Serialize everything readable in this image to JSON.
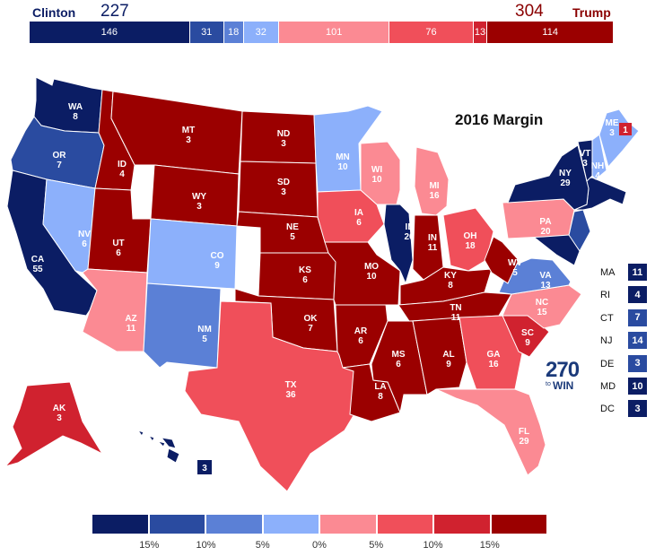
{
  "header": {
    "clinton_name": "Clinton",
    "clinton_total": "227",
    "trump_total": "304",
    "trump_name": "Trump"
  },
  "ev_bar": [
    {
      "value": "146",
      "color": "#0b1d64"
    },
    {
      "value": "31",
      "color": "#2a4ba0"
    },
    {
      "value": "18",
      "color": "#5b80d6"
    },
    {
      "value": "32",
      "color": "#8cb0fb"
    },
    {
      "value": "101",
      "color": "#fb8a93"
    },
    {
      "value": "76",
      "color": "#f04f5a"
    },
    {
      "value": "13",
      "color": "#d0222f"
    },
    {
      "value": "114",
      "color": "#9b0000"
    }
  ],
  "map_title": "2016 Margin",
  "colors": {
    "safe_d": "#0b1d64",
    "likely_d": "#2a4ba0",
    "lean_d": "#5b80d6",
    "tilt_d": "#8cb0fb",
    "tilt_r": "#fb8a93",
    "lean_r": "#f04f5a",
    "likely_r": "#d0222f",
    "safe_r": "#9b0000"
  },
  "states": [
    {
      "abbr": "WA",
      "ev": "8",
      "cat": "safe_d"
    },
    {
      "abbr": "OR",
      "ev": "7",
      "cat": "likely_d"
    },
    {
      "abbr": "CA",
      "ev": "55",
      "cat": "safe_d"
    },
    {
      "abbr": "NV",
      "ev": "6",
      "cat": "tilt_d"
    },
    {
      "abbr": "ID",
      "ev": "4",
      "cat": "safe_r"
    },
    {
      "abbr": "MT",
      "ev": "3",
      "cat": "safe_r"
    },
    {
      "abbr": "WY",
      "ev": "3",
      "cat": "safe_r"
    },
    {
      "abbr": "UT",
      "ev": "6",
      "cat": "safe_r"
    },
    {
      "abbr": "AZ",
      "ev": "11",
      "cat": "tilt_r"
    },
    {
      "abbr": "CO",
      "ev": "9",
      "cat": "tilt_d"
    },
    {
      "abbr": "NM",
      "ev": "5",
      "cat": "lean_d"
    },
    {
      "abbr": "ND",
      "ev": "3",
      "cat": "safe_r"
    },
    {
      "abbr": "SD",
      "ev": "3",
      "cat": "safe_r"
    },
    {
      "abbr": "NE",
      "ev": "5",
      "cat": "safe_r"
    },
    {
      "abbr": "KS",
      "ev": "6",
      "cat": "safe_r"
    },
    {
      "abbr": "OK",
      "ev": "7",
      "cat": "safe_r"
    },
    {
      "abbr": "TX",
      "ev": "36",
      "cat": "lean_r"
    },
    {
      "abbr": "MN",
      "ev": "10",
      "cat": "tilt_d"
    },
    {
      "abbr": "IA",
      "ev": "6",
      "cat": "lean_r"
    },
    {
      "abbr": "MO",
      "ev": "10",
      "cat": "safe_r"
    },
    {
      "abbr": "AR",
      "ev": "6",
      "cat": "safe_r"
    },
    {
      "abbr": "LA",
      "ev": "8",
      "cat": "safe_r"
    },
    {
      "abbr": "WI",
      "ev": "10",
      "cat": "tilt_r"
    },
    {
      "abbr": "IL",
      "ev": "20",
      "cat": "safe_d"
    },
    {
      "abbr": "MI",
      "ev": "16",
      "cat": "tilt_r"
    },
    {
      "abbr": "IN",
      "ev": "11",
      "cat": "safe_r"
    },
    {
      "abbr": "OH",
      "ev": "18",
      "cat": "lean_r"
    },
    {
      "abbr": "KY",
      "ev": "8",
      "cat": "safe_r"
    },
    {
      "abbr": "TN",
      "ev": "11",
      "cat": "safe_r"
    },
    {
      "abbr": "MS",
      "ev": "6",
      "cat": "safe_r"
    },
    {
      "abbr": "AL",
      "ev": "9",
      "cat": "safe_r"
    },
    {
      "abbr": "GA",
      "ev": "16",
      "cat": "lean_r"
    },
    {
      "abbr": "FL",
      "ev": "29",
      "cat": "tilt_r"
    },
    {
      "abbr": "SC",
      "ev": "9",
      "cat": "likely_r"
    },
    {
      "abbr": "NC",
      "ev": "15",
      "cat": "tilt_r"
    },
    {
      "abbr": "VA",
      "ev": "13",
      "cat": "lean_d"
    },
    {
      "abbr": "WV",
      "ev": "5",
      "cat": "safe_r"
    },
    {
      "abbr": "PA",
      "ev": "20",
      "cat": "tilt_r"
    },
    {
      "abbr": "NY",
      "ev": "29",
      "cat": "safe_d"
    },
    {
      "abbr": "VT",
      "ev": "3",
      "cat": "safe_d"
    },
    {
      "abbr": "NH",
      "ev": "4",
      "cat": "tilt_d"
    },
    {
      "abbr": "ME",
      "ev": "3",
      "cat": "tilt_d"
    },
    {
      "abbr": "ME2",
      "ev": "1",
      "cat": "likely_r"
    },
    {
      "abbr": "AK",
      "ev": "3",
      "cat": "likely_r"
    },
    {
      "abbr": "HI",
      "ev": "3",
      "cat": "safe_d"
    }
  ],
  "small_states": [
    {
      "abbr": "MA",
      "ev": "11",
      "cat": "safe_d"
    },
    {
      "abbr": "RI",
      "ev": "4",
      "cat": "safe_d"
    },
    {
      "abbr": "CT",
      "ev": "7",
      "cat": "likely_d"
    },
    {
      "abbr": "NJ",
      "ev": "14",
      "cat": "likely_d"
    },
    {
      "abbr": "DE",
      "ev": "3",
      "cat": "likely_d"
    },
    {
      "abbr": "MD",
      "ev": "10",
      "cat": "safe_d"
    },
    {
      "abbr": "DC",
      "ev": "3",
      "cat": "safe_d"
    }
  ],
  "logo": {
    "number": "270",
    "to": "to",
    "win": "WIN"
  },
  "legend": {
    "colors": [
      "#0b1d64",
      "#2a4ba0",
      "#5b80d6",
      "#8cb0fb",
      "#fb8a93",
      "#f04f5a",
      "#d0222f",
      "#9b0000"
    ],
    "ticks": [
      "15%",
      "10%",
      "5%",
      "0%",
      "5%",
      "10%",
      "15%"
    ]
  }
}
